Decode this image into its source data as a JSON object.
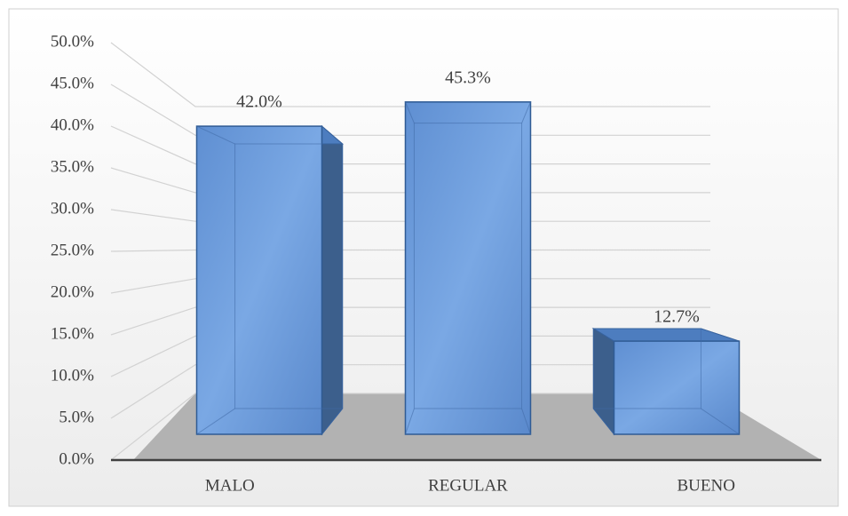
{
  "chart_data": {
    "type": "bar3d",
    "categories": [
      "MALO",
      "REGULAR",
      "BUENO"
    ],
    "values": [
      42.0,
      45.3,
      12.7
    ],
    "value_labels": [
      "42.0%",
      "45.3%",
      "12.7%"
    ],
    "color": "#5b8bd0",
    "ylim": [
      0,
      50
    ],
    "yticks": [
      {
        "value": 0,
        "label": "0.0%"
      },
      {
        "value": 5,
        "label": "5.0%"
      },
      {
        "value": 10,
        "label": "10.0%"
      },
      {
        "value": 15,
        "label": "15.0%"
      },
      {
        "value": 20,
        "label": "20.0%"
      },
      {
        "value": 25,
        "label": "25.0%"
      },
      {
        "value": 30,
        "label": "30.0%"
      },
      {
        "value": 35,
        "label": "35.0%"
      },
      {
        "value": 40,
        "label": "40.0%"
      },
      {
        "value": 45,
        "label": "45.0%"
      },
      {
        "value": 50,
        "label": "50.0%"
      }
    ],
    "grid": true
  }
}
